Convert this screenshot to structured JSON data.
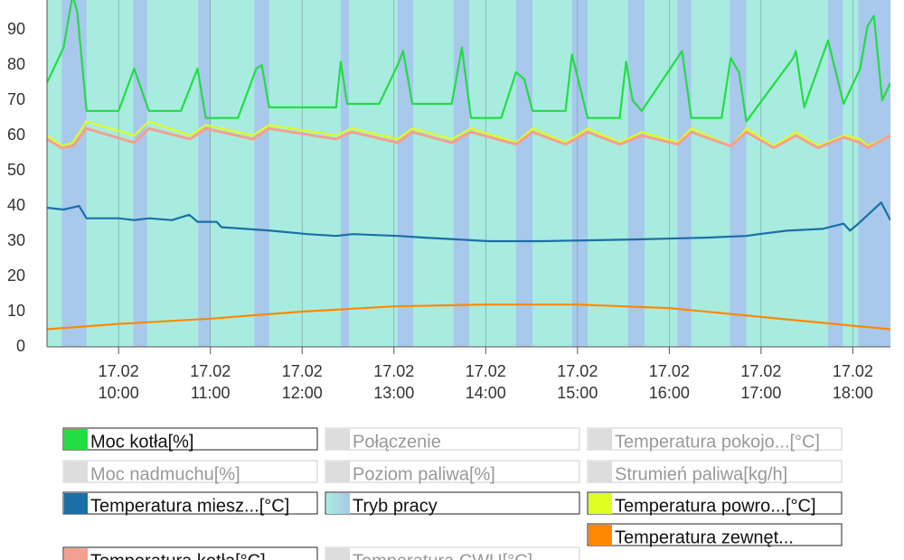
{
  "chart_data": {
    "type": "line",
    "xlim": [
      9.22,
      18.41
    ],
    "ylim": [
      0,
      98.5
    ],
    "yticks": [
      0,
      10,
      20,
      30,
      40,
      50,
      60,
      70,
      80,
      90
    ],
    "xticks": [
      {
        "value": 10,
        "label": "17.02 10:00"
      },
      {
        "value": 11,
        "label": "17.02 11:00"
      },
      {
        "value": 12,
        "label": "17.02 12:00"
      },
      {
        "value": 13,
        "label": "17.02 13:00"
      },
      {
        "value": 14,
        "label": "17.02 14:00"
      },
      {
        "value": 15,
        "label": "17.02 15:00"
      },
      {
        "value": 16,
        "label": "17.02 16:00"
      },
      {
        "value": 17,
        "label": "17.02 17:00"
      },
      {
        "value": 18,
        "label": "17.02 18:00"
      }
    ],
    "series": [
      {
        "name": "Moc kotła[%]",
        "color": "#22dd44",
        "active": true,
        "x": [
          9.22,
          9.4,
          9.5,
          9.55,
          9.65,
          10.0,
          10.17,
          10.33,
          10.68,
          10.86,
          10.95,
          11.3,
          11.5,
          11.56,
          11.64,
          12.37,
          12.42,
          12.49,
          12.84,
          13.04,
          13.1,
          13.2,
          13.63,
          13.74,
          13.84,
          14.17,
          14.33,
          14.42,
          14.51,
          14.87,
          14.94,
          15.11,
          15.46,
          15.53,
          15.6,
          15.7,
          16.14,
          16.24,
          16.57,
          16.67,
          16.76,
          16.84,
          17.35,
          17.38,
          17.47,
          17.73,
          17.9,
          18.08,
          18.16,
          18.23,
          18.32,
          18.41
        ],
        "values": [
          75,
          85,
          100,
          95,
          67,
          67,
          79,
          67,
          67,
          79,
          65,
          65,
          79,
          80,
          68,
          68,
          81,
          69,
          69,
          80,
          84,
          69,
          69,
          85,
          65,
          65,
          78,
          76,
          67,
          67,
          83,
          65,
          65,
          81,
          70,
          67,
          84,
          65,
          65,
          82,
          78,
          64,
          82,
          84,
          68,
          87,
          69,
          79,
          91,
          94,
          70,
          75
        ]
      },
      {
        "name": "Połączenie",
        "color": "#dddddd",
        "active": false
      },
      {
        "name": "Temperatura pokojo...[°C]",
        "color": "#dddddd",
        "active": false
      },
      {
        "name": "Moc nadmuchu[%]",
        "color": "#dddddd",
        "active": false
      },
      {
        "name": "Poziom paliwa[%]",
        "color": "#dddddd",
        "active": false
      },
      {
        "name": "Strumień paliwa[kg/h]",
        "color": "#dddddd",
        "active": false
      },
      {
        "name": "Temperatura miesz...[°C]",
        "color": "#1a6fa6",
        "active": true,
        "x": [
          9.22,
          9.4,
          9.57,
          9.65,
          10.0,
          10.17,
          10.33,
          10.58,
          10.77,
          10.86,
          11.07,
          11.12,
          11.66,
          12.06,
          12.37,
          12.55,
          13.04,
          13.34,
          14.03,
          14.62,
          15.61,
          16.4,
          16.84,
          16.98,
          17.28,
          17.67,
          17.9,
          17.97,
          18.06,
          18.31,
          18.41
        ],
        "values": [
          39.5,
          39,
          40,
          36.5,
          36.5,
          36,
          36.5,
          36,
          37.5,
          35.5,
          35.5,
          34,
          33,
          32,
          31.5,
          32,
          31.5,
          31,
          30,
          30,
          30.5,
          31,
          31.5,
          32,
          33,
          33.5,
          35,
          33,
          35,
          41,
          36
        ]
      },
      {
        "name": "Tryb pracy",
        "color": "#a8c8ec",
        "active": true,
        "bands": [
          [
            9.38,
            9.65
          ],
          [
            10.16,
            10.31
          ],
          [
            10.87,
            11.0
          ],
          [
            11.48,
            11.64
          ],
          [
            12.42,
            12.51
          ],
          [
            13.04,
            13.21
          ],
          [
            13.65,
            13.82
          ],
          [
            14.33,
            14.51
          ],
          [
            14.94,
            15.11
          ],
          [
            15.55,
            15.73
          ],
          [
            16.09,
            16.24
          ],
          [
            16.66,
            16.84
          ],
          [
            17.73,
            17.89
          ],
          [
            18.06,
            18.41
          ]
        ]
      },
      {
        "name": "Temperatura powro...[°C]",
        "color": "#ddff22",
        "active": true,
        "x": [
          9.22,
          9.38,
          9.5,
          9.65,
          10.17,
          10.33,
          10.78,
          10.95,
          11.46,
          11.64,
          12.37,
          12.54,
          13.04,
          13.2,
          13.63,
          13.84,
          14.33,
          14.51,
          14.87,
          15.11,
          15.46,
          15.7,
          16.09,
          16.24,
          16.67,
          16.84,
          17.14,
          17.38,
          17.62,
          17.9,
          18.08,
          18.16,
          18.41
        ],
        "values": [
          60,
          57,
          58,
          64,
          60,
          64,
          60,
          63,
          60,
          63,
          60,
          62,
          59,
          62,
          59,
          62,
          58,
          62,
          58,
          62,
          58,
          61,
          58,
          62,
          57,
          62,
          57,
          61,
          57,
          60,
          59,
          57,
          60
        ]
      },
      {
        "name": "Temperatura zewnęt...",
        "color": "#ff8800",
        "active": true,
        "x": [
          9.22,
          9.99,
          11.0,
          12.0,
          13.0,
          14.0,
          15.0,
          16.0,
          17.0,
          18.0,
          18.41
        ],
        "values": [
          5,
          6.5,
          8,
          10,
          11.5,
          12,
          12,
          11,
          8.5,
          6,
          5
        ]
      },
      {
        "name": "Temperatura kotła[°C]",
        "color": "#f4a090",
        "active": true,
        "x": [
          9.22,
          9.38,
          9.5,
          9.65,
          10.17,
          10.33,
          10.78,
          10.95,
          11.46,
          11.64,
          12.37,
          12.54,
          13.04,
          13.2,
          13.63,
          13.84,
          14.33,
          14.51,
          14.87,
          15.11,
          15.46,
          15.7,
          16.09,
          16.24,
          16.67,
          16.84,
          17.14,
          17.38,
          17.62,
          17.9,
          18.08,
          18.16,
          18.41
        ],
        "values": [
          59,
          56.5,
          57,
          62,
          58,
          62,
          59,
          62,
          59,
          62,
          59,
          61,
          58,
          61,
          58,
          61,
          57.5,
          61,
          57.5,
          61,
          57.5,
          60,
          57.5,
          61,
          57,
          61,
          56.5,
          60,
          56.5,
          59.5,
          58,
          56.5,
          60
        ]
      },
      {
        "name": "Temperatura CWU[°C]",
        "color": "#dddddd",
        "active": false
      }
    ]
  }
}
